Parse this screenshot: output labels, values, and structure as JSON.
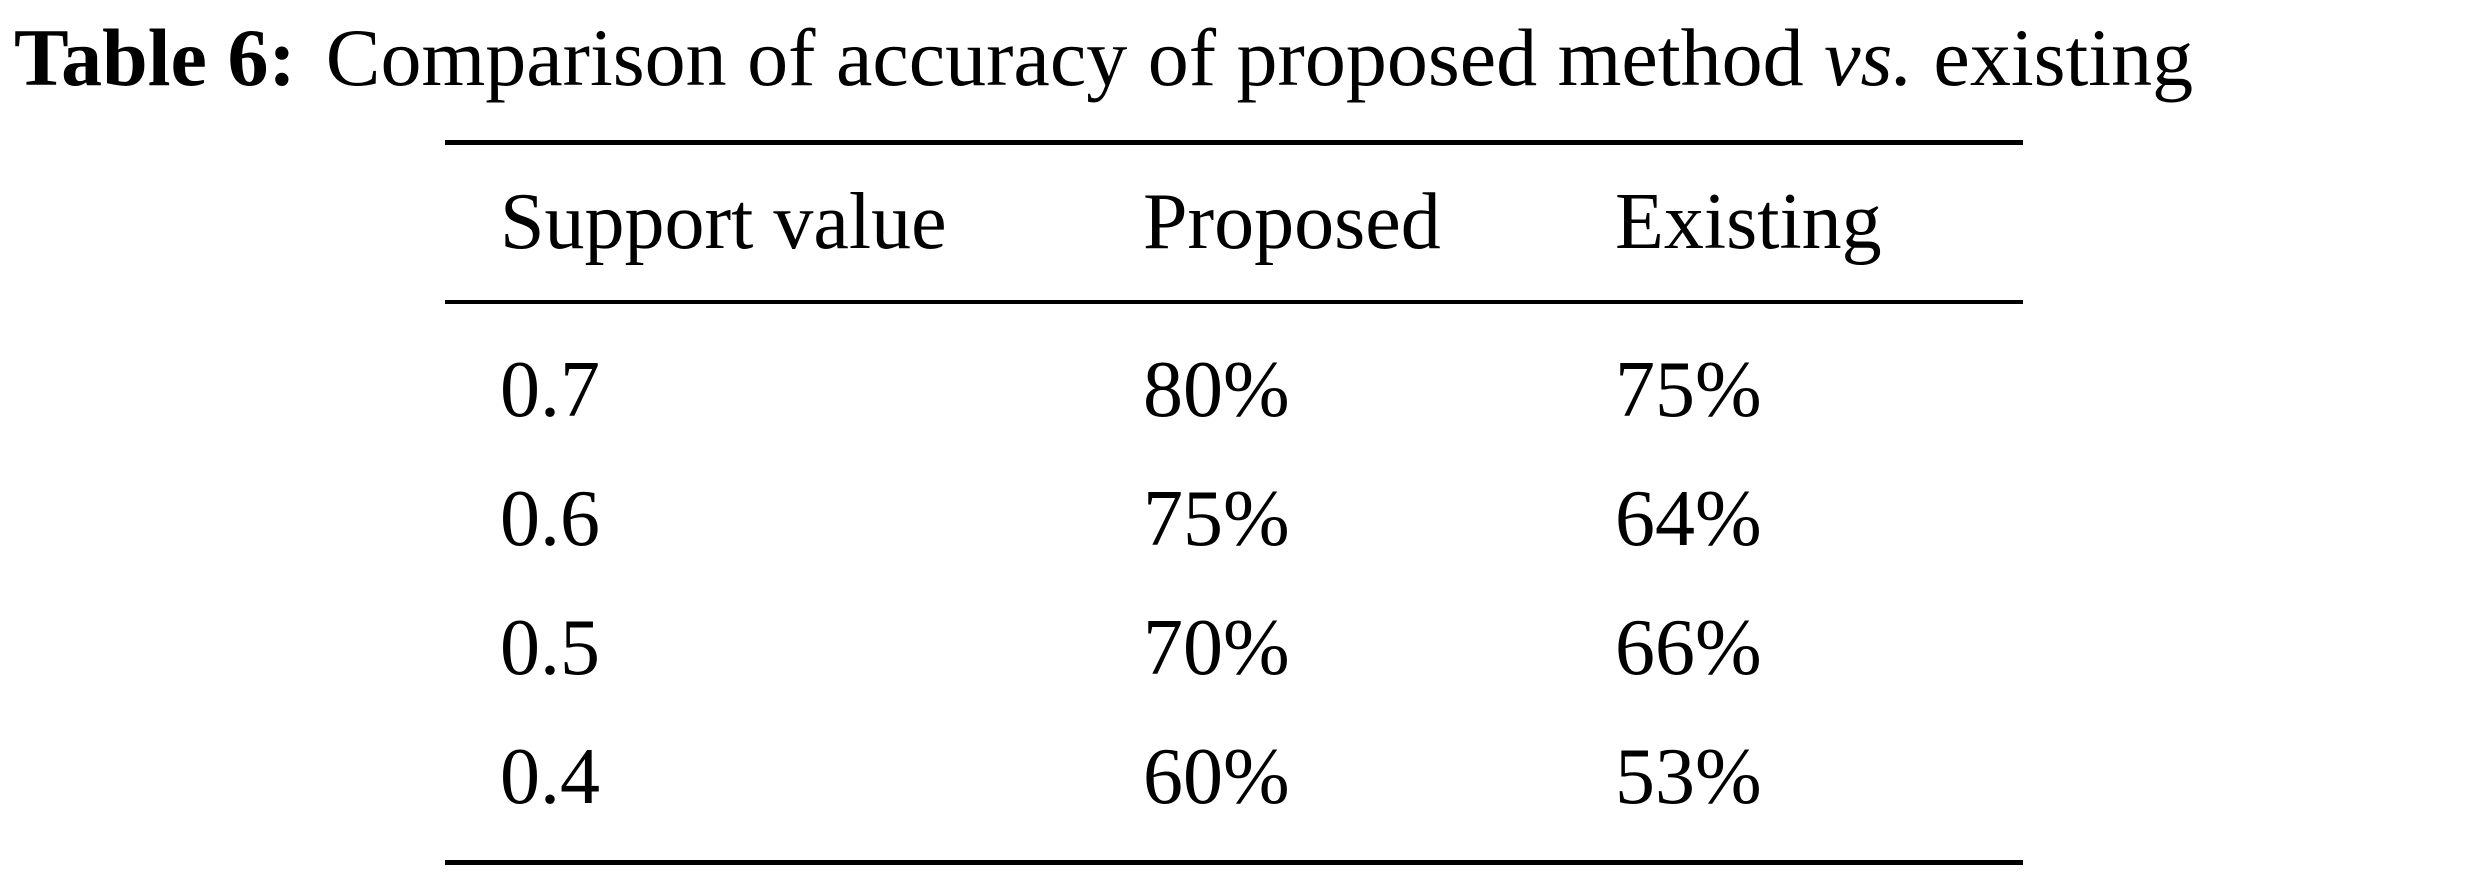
{
  "caption": {
    "label": "Table 6:",
    "text": "Comparison of accuracy of proposed method",
    "emphasis": "vs.",
    "text_end": "existing"
  },
  "table": {
    "header": [
      "Support value",
      "Proposed",
      "Existing"
    ],
    "rows": [
      [
        "0.7",
        "80%",
        "75%"
      ],
      [
        "0.6",
        "75%",
        "64%"
      ],
      [
        "0.5",
        "70%",
        "66%"
      ],
      [
        "0.4",
        "60%",
        "53%"
      ]
    ]
  }
}
